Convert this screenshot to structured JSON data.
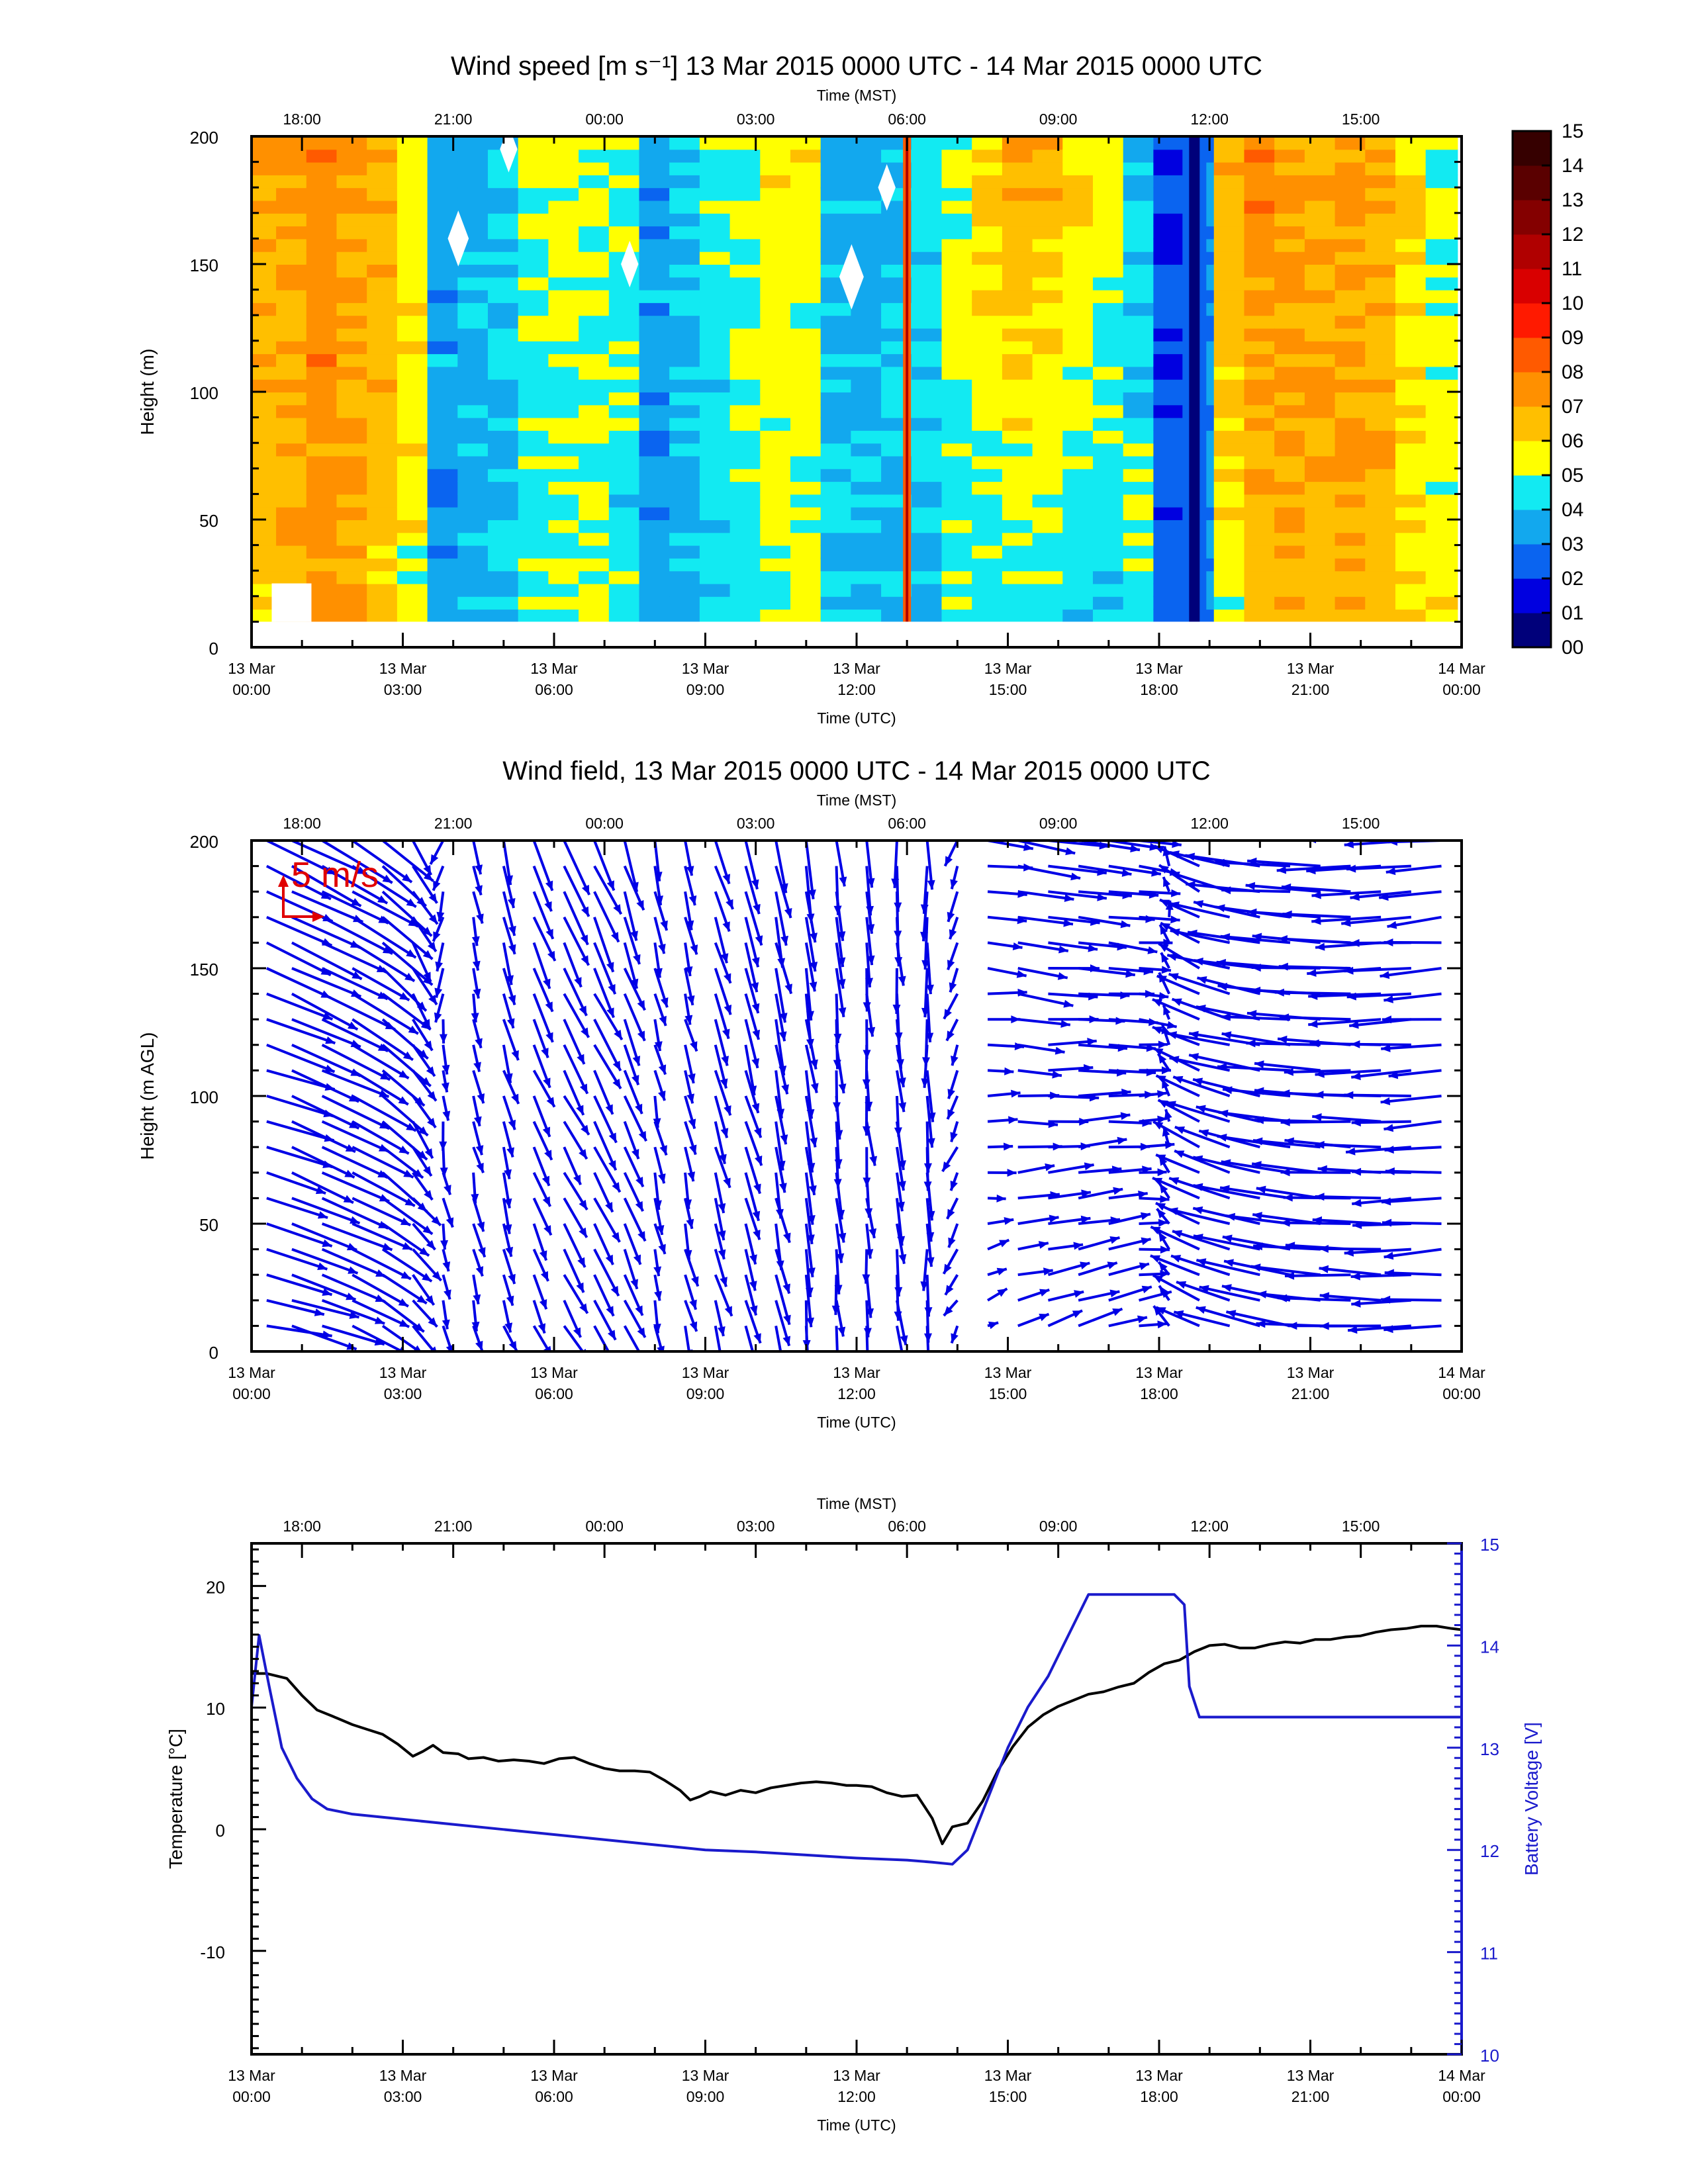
{
  "chart_data": [
    {
      "type": "heatmap",
      "title": "Wind speed [m s⁻¹] 13 Mar 2015 0000 UTC - 14 Mar 2015 0000 UTC",
      "xlabel": "Time (UTC)",
      "x2label": "Time (MST)",
      "ylabel": "Height (m)",
      "xlim_hours": [
        0,
        24
      ],
      "ylim": [
        0,
        200
      ],
      "x_ticks": [
        {
          "line1": "13 Mar",
          "line2": "00:00",
          "hour": 0
        },
        {
          "line1": "13 Mar",
          "line2": "03:00",
          "hour": 3
        },
        {
          "line1": "13 Mar",
          "line2": "06:00",
          "hour": 6
        },
        {
          "line1": "13 Mar",
          "line2": "09:00",
          "hour": 9
        },
        {
          "line1": "13 Mar",
          "line2": "12:00",
          "hour": 12
        },
        {
          "line1": "13 Mar",
          "line2": "15:00",
          "hour": 15
        },
        {
          "line1": "13 Mar",
          "line2": "18:00",
          "hour": 18
        },
        {
          "line1": "13 Mar",
          "line2": "21:00",
          "hour": 21
        },
        {
          "line1": "14 Mar",
          "line2": "00:00",
          "hour": 24
        }
      ],
      "x2_ticks": [
        {
          "label": "18:00",
          "hour": 1
        },
        {
          "label": "21:00",
          "hour": 4
        },
        {
          "label": "00:00",
          "hour": 7
        },
        {
          "label": "03:00",
          "hour": 10
        },
        {
          "label": "06:00",
          "hour": 13
        },
        {
          "label": "09:00",
          "hour": 16
        },
        {
          "label": "12:00",
          "hour": 19
        },
        {
          "label": "15:00",
          "hour": 22
        }
      ],
      "y_ticks": [
        0,
        50,
        100,
        150,
        200
      ],
      "colorbar": {
        "labels": [
          "00",
          "01",
          "02",
          "03",
          "04",
          "05",
          "06",
          "07",
          "08",
          "09",
          "10",
          "11",
          "12",
          "13",
          "14",
          "15"
        ],
        "colors": [
          "#00007a",
          "#0000e0",
          "#0a64f0",
          "#12a8ee",
          "#12eaf2",
          "#ffff00",
          "#ffbf00",
          "#ff9000",
          "#ff5a00",
          "#ff1a00",
          "#d90000",
          "#b00000",
          "#840000",
          "#5a0000",
          "#360000"
        ]
      },
      "height_range_m": [
        10,
        200
      ],
      "time_hours": [
        0.2,
        0.8,
        1.4,
        2.0,
        2.6,
        3.2,
        3.8,
        4.4,
        5.0,
        5.6,
        6.2,
        6.8,
        7.4,
        8.0,
        8.6,
        9.2,
        9.8,
        10.4,
        11.0,
        11.6,
        12.2,
        12.8,
        13.4,
        14.0,
        14.6,
        15.2,
        15.8,
        16.4,
        17.0,
        17.6,
        18.2,
        18.8,
        19.4,
        20.0,
        20.6,
        21.2,
        21.8,
        22.4,
        23.0,
        23.6
      ],
      "speed_low_mps": [
        6.4,
        6.8,
        7.2,
        6.9,
        6.3,
        5.4,
        3.3,
        3.7,
        3.8,
        4.6,
        5.2,
        4.9,
        4.4,
        3.3,
        3.6,
        4.2,
        4.6,
        5.3,
        5.1,
        3.8,
        3.7,
        3.9,
        4.1,
        4.7,
        4.4,
        4.6,
        4.6,
        4.3,
        4.1,
        5.0,
        2.6,
        3.0,
        5.5,
        6.2,
        6.7,
        6.8,
        6.9,
        6.6,
        6.0,
        5.6
      ],
      "speed_high_mps": [
        6.9,
        7.4,
        7.7,
        7.3,
        6.8,
        5.6,
        3.7,
        4.1,
        4.2,
        5.3,
        5.4,
        5.3,
        4.8,
        3.5,
        4.0,
        4.8,
        5.3,
        5.7,
        5.5,
        4.2,
        3.6,
        3.9,
        4.6,
        5.2,
        6.3,
        7.2,
        6.8,
        6.2,
        5.4,
        4.0,
        1.8,
        3.3,
        6.8,
        8.1,
        7.4,
        7.0,
        7.3,
        6.7,
        6.1,
        5.2
      ]
    },
    {
      "type": "vector",
      "title": "Wind field, 13 Mar 2015 0000 UTC - 14 Mar 2015 0000 UTC",
      "xlabel": "Time (UTC)",
      "x2label": "Time (MST)",
      "ylabel": "Height (m AGL)",
      "xlim_hours": [
        0,
        24
      ],
      "ylim": [
        0,
        200
      ],
      "y_ticks": [
        0,
        50,
        100,
        150,
        200
      ],
      "reference_label": "5 m/s",
      "reference_color": "#e00000",
      "vector_color": "#0000e6",
      "time_hours": [
        0.3,
        0.8,
        1.4,
        2.0,
        2.6,
        3.2,
        3.8,
        4.4,
        5.0,
        5.6,
        6.2,
        6.8,
        7.4,
        8.0,
        8.6,
        9.2,
        9.8,
        10.4,
        11.0,
        11.6,
        12.2,
        12.8,
        13.4,
        14.0,
        14.6,
        15.2,
        15.8,
        16.4,
        17.0,
        17.6,
        18.2,
        18.8,
        19.4,
        20.0,
        20.6,
        21.2,
        21.8,
        22.4,
        23.0,
        23.6
      ],
      "heights_m": [
        10,
        20,
        30,
        40,
        50,
        60,
        70,
        80,
        90,
        100,
        110,
        120,
        130,
        140,
        150,
        160,
        170,
        180,
        190,
        200
      ],
      "u_low_mps": [
        -4.8,
        -5.0,
        -5.2,
        -4.6,
        -3.5,
        -2.0,
        -0.8,
        -0.6,
        -0.8,
        -1.2,
        -1.5,
        -1.8,
        -1.4,
        -0.6,
        -0.6,
        -0.9,
        -0.9,
        -0.7,
        -0.4,
        -0.3,
        -0.3,
        -0.4,
        0.0,
        0.8,
        -1.2,
        -2.4,
        -2.8,
        -3.2,
        -3.0,
        -2.2,
        1.0,
        3.6,
        4.6,
        4.9,
        5.2,
        5.4,
        5.4,
        5.2,
        4.9,
        4.5
      ],
      "v_low_mps": [
        1.2,
        1.6,
        1.8,
        2.2,
        2.5,
        2.3,
        2.0,
        2.2,
        2.3,
        2.6,
        2.9,
        3.2,
        3.0,
        2.4,
        2.5,
        2.9,
        3.3,
        3.7,
        3.8,
        3.2,
        3.0,
        3.3,
        3.5,
        1.5,
        -0.6,
        -0.8,
        -0.9,
        -1.0,
        -0.8,
        -0.4,
        -1.2,
        -1.6,
        -1.4,
        -1.1,
        -0.8,
        -0.5,
        -0.3,
        -0.2,
        0.0,
        0.2
      ],
      "u_high_mps": [
        -5.4,
        -5.6,
        -5.5,
        -5.0,
        -3.8,
        -1.6,
        0.7,
        -0.4,
        -0.8,
        -1.4,
        -1.7,
        -1.8,
        -1.3,
        -0.6,
        -0.7,
        -1.0,
        -1.1,
        -0.9,
        -0.6,
        -0.4,
        -0.3,
        -0.2,
        -0.1,
        0.8,
        -3.6,
        -4.8,
        -4.6,
        -4.5,
        -4.2,
        -3.0,
        0.2,
        3.2,
        4.8,
        5.6,
        5.8,
        5.7,
        5.8,
        5.7,
        5.3,
        4.6
      ],
      "v_high_mps": [
        2.5,
        2.9,
        3.0,
        3.2,
        3.3,
        3.0,
        2.0,
        2.5,
        3.4,
        3.9,
        4.0,
        4.2,
        3.8,
        3.0,
        3.0,
        3.6,
        4.0,
        4.3,
        4.4,
        3.9,
        3.6,
        3.8,
        4.0,
        2.2,
        0.6,
        1.2,
        0.8,
        0.6,
        0.8,
        0.6,
        -1.4,
        -1.8,
        -1.2,
        -0.8,
        -0.4,
        -0.2,
        0.0,
        0.2,
        0.3,
        0.4
      ]
    },
    {
      "type": "line",
      "x2label": "Time (MST)",
      "xlabel": "Time (UTC)",
      "ylabel": "Temperature [°C]",
      "y2label": "Battery Voltage [V]",
      "xlim_hours": [
        0,
        24
      ],
      "ylim": [
        -18.5,
        23.5
      ],
      "y2lim": [
        10,
        15
      ],
      "y_ticks": [
        -10,
        0,
        10,
        20
      ],
      "y2_ticks": [
        10,
        11,
        12,
        13,
        14,
        15
      ],
      "series": [
        {
          "color": "#000000",
          "x_hours": [
            0,
            0.3,
            0.7,
            1.0,
            1.3,
            1.6,
            2.0,
            2.3,
            2.6,
            2.9,
            3.2,
            3.4,
            3.6,
            3.8,
            4.1,
            4.3,
            4.6,
            4.9,
            5.2,
            5.5,
            5.8,
            6.1,
            6.4,
            6.7,
            7.0,
            7.3,
            7.6,
            7.9,
            8.2,
            8.5,
            8.7,
            8.9,
            9.1,
            9.4,
            9.7,
            10.0,
            10.3,
            10.6,
            10.9,
            11.2,
            11.5,
            11.8,
            12.0,
            12.3,
            12.6,
            12.9,
            13.2,
            13.5,
            13.7,
            13.9,
            14.2,
            14.5,
            14.8,
            15.1,
            15.4,
            15.7,
            16.0,
            16.3,
            16.6,
            16.9,
            17.2,
            17.5,
            17.8,
            18.1,
            18.4,
            18.7,
            19.0,
            19.3,
            19.6,
            19.9,
            20.2,
            20.5,
            20.8,
            21.1,
            21.4,
            21.7,
            22.0,
            22.3,
            22.6,
            22.9,
            23.2,
            23.5,
            23.8,
            24.0
          ],
          "y": [
            12.8,
            12.8,
            12.4,
            11.0,
            9.8,
            9.3,
            8.6,
            8.2,
            7.8,
            7.0,
            6.0,
            6.4,
            6.9,
            6.3,
            6.2,
            5.8,
            5.9,
            5.6,
            5.7,
            5.6,
            5.4,
            5.8,
            5.9,
            5.4,
            5.0,
            4.8,
            4.8,
            4.7,
            4.0,
            3.2,
            2.4,
            2.7,
            3.1,
            2.8,
            3.2,
            3.0,
            3.4,
            3.6,
            3.8,
            3.9,
            3.8,
            3.6,
            3.6,
            3.5,
            3.0,
            2.7,
            2.8,
            0.9,
            -1.2,
            0.2,
            0.5,
            2.3,
            4.8,
            6.8,
            8.4,
            9.4,
            10.1,
            10.6,
            11.1,
            11.3,
            11.7,
            12.0,
            12.9,
            13.6,
            13.9,
            14.6,
            15.1,
            15.2,
            14.9,
            14.9,
            15.2,
            15.4,
            15.3,
            15.6,
            15.6,
            15.8,
            15.9,
            16.2,
            16.4,
            16.5,
            16.7,
            16.7,
            16.5,
            16.4
          ]
        },
        {
          "color": "#1a1acc",
          "x_hours": [
            0,
            0.15,
            0.35,
            0.6,
            0.9,
            1.2,
            1.5,
            2.0,
            3.0,
            4.0,
            5.0,
            6.0,
            7.0,
            8.0,
            9.0,
            10.0,
            11.0,
            12.0,
            13.0,
            13.5,
            13.9,
            14.2,
            14.6,
            15.0,
            15.4,
            15.8,
            16.1,
            16.4,
            16.6,
            16.8,
            17.2,
            17.6,
            18.0,
            18.3,
            18.5,
            18.6,
            18.8,
            19.2,
            20.0,
            21.0,
            22.0,
            23.0,
            24.0
          ],
          "y": [
            13.4,
            14.1,
            13.6,
            13.0,
            12.7,
            12.5,
            12.4,
            12.35,
            12.3,
            12.25,
            12.2,
            12.15,
            12.1,
            12.05,
            12.0,
            11.98,
            11.95,
            11.92,
            11.9,
            11.88,
            11.86,
            12.0,
            12.5,
            13.0,
            13.4,
            13.7,
            14.0,
            14.3,
            14.5,
            14.5,
            14.5,
            14.5,
            14.5,
            14.5,
            14.4,
            13.6,
            13.3,
            13.3,
            13.3,
            13.3,
            13.3,
            13.3,
            13.3
          ]
        }
      ]
    }
  ]
}
